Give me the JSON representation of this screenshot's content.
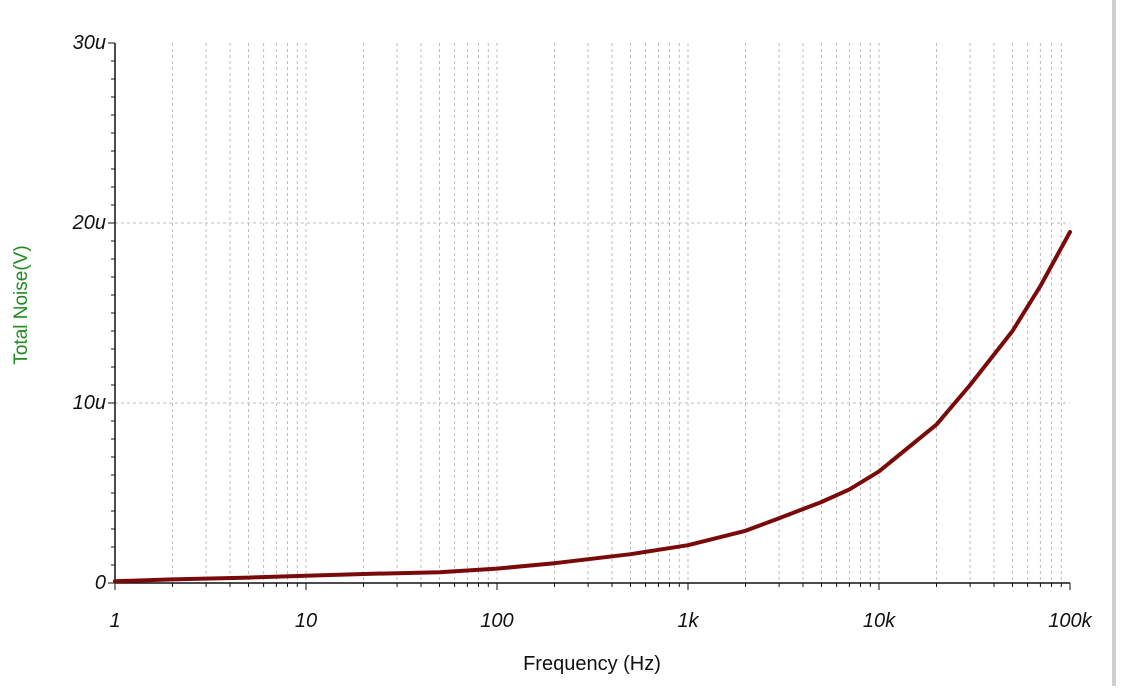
{
  "chart_data": {
    "type": "line",
    "xlabel": "Frequency (Hz)",
    "ylabel": "Total Noise(V)",
    "xscale": "log",
    "xlim": [
      1,
      100000
    ],
    "ylim": [
      0,
      3e-05
    ],
    "grid": true,
    "x_ticks": [
      {
        "value": 1,
        "label": "1"
      },
      {
        "value": 10,
        "label": "10"
      },
      {
        "value": 100,
        "label": "100"
      },
      {
        "value": 1000,
        "label": "1k"
      },
      {
        "value": 10000,
        "label": "10k"
      },
      {
        "value": 100000,
        "label": "100k"
      }
    ],
    "y_ticks": [
      {
        "value": 0,
        "label": "0"
      },
      {
        "value": 1e-05,
        "label": "10u"
      },
      {
        "value": 2e-05,
        "label": "20u"
      },
      {
        "value": 3e-05,
        "label": "30u"
      }
    ],
    "series": [
      {
        "color": "#7a0a0a",
        "x": [
          1,
          2,
          5,
          10,
          20,
          50,
          100,
          200,
          500,
          1000,
          2000,
          3000,
          5000,
          7000,
          10000,
          20000,
          30000,
          50000,
          70000,
          100000
        ],
        "y": [
          1e-07,
          2e-07,
          3e-07,
          4e-07,
          5e-07,
          6e-07,
          8e-07,
          1.1e-06,
          1.6e-06,
          2.1e-06,
          2.9e-06,
          3.6e-06,
          4.5e-06,
          5.2e-06,
          6.2e-06,
          8.8e-06,
          1.1e-05,
          1.4e-05,
          1.65e-05,
          1.95e-05
        ]
      }
    ],
    "colors": {
      "line": "#7a0a0a",
      "grid": "#bdbdbd",
      "axis": "#111111",
      "ylabel": "#1e8c1e"
    }
  }
}
